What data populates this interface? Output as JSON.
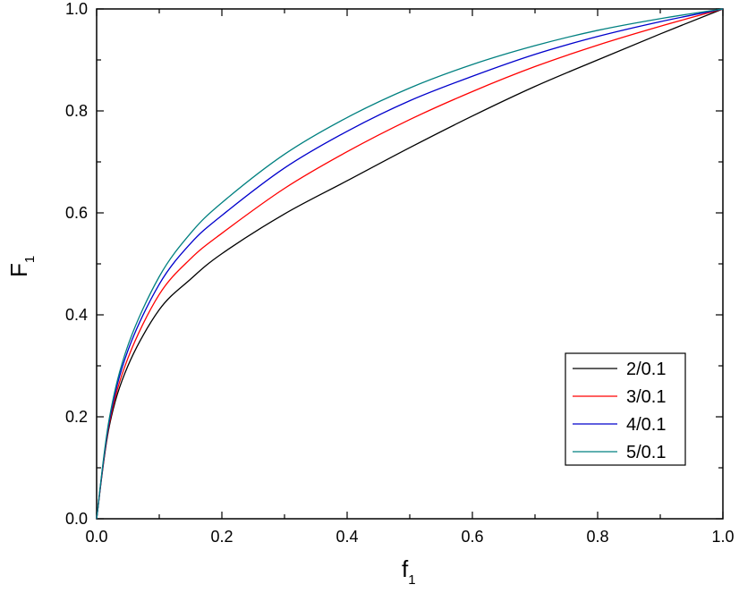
{
  "chart_data": {
    "type": "line",
    "title": "",
    "xlabel": "f",
    "xlabel_sub": "1",
    "ylabel": "F",
    "ylabel_sub": "1",
    "xlim": [
      0.0,
      1.0
    ],
    "ylim": [
      0.0,
      1.0
    ],
    "x_ticks": [
      "0.0",
      "0.2",
      "0.4",
      "0.6",
      "0.8",
      "1.0"
    ],
    "y_ticks": [
      "0.0",
      "0.2",
      "0.4",
      "0.6",
      "0.8",
      "1.0"
    ],
    "grid": false,
    "legend_position": "bottom-right",
    "x": [
      0.0,
      0.02,
      0.05,
      0.1,
      0.15,
      0.2,
      0.3,
      0.4,
      0.5,
      0.6,
      0.7,
      0.8,
      0.9,
      1.0
    ],
    "series": [
      {
        "name": "2/0.1",
        "color": "#000000",
        "values": [
          0.0,
          0.18,
          0.3,
          0.41,
          0.47,
          0.52,
          0.598,
          0.663,
          0.728,
          0.79,
          0.848,
          0.9,
          0.951,
          1.0
        ]
      },
      {
        "name": "3/0.1",
        "color": "#ff0000",
        "values": [
          0.0,
          0.185,
          0.315,
          0.44,
          0.51,
          0.56,
          0.648,
          0.72,
          0.783,
          0.838,
          0.887,
          0.929,
          0.966,
          1.0
        ]
      },
      {
        "name": "4/0.1",
        "color": "#0000cc",
        "values": [
          0.0,
          0.19,
          0.33,
          0.46,
          0.54,
          0.595,
          0.688,
          0.76,
          0.82,
          0.868,
          0.911,
          0.946,
          0.975,
          1.0
        ]
      },
      {
        "name": "5/0.1",
        "color": "#008080",
        "values": [
          0.0,
          0.195,
          0.34,
          0.475,
          0.56,
          0.62,
          0.715,
          0.787,
          0.845,
          0.891,
          0.928,
          0.958,
          0.981,
          1.0
        ]
      }
    ]
  }
}
